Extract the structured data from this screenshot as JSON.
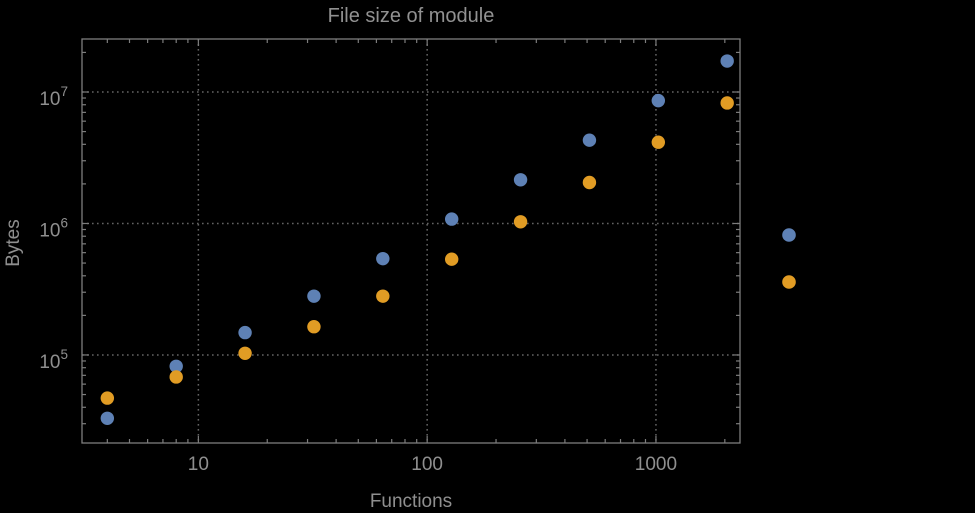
{
  "chart_data": {
    "type": "scatter",
    "title": "File size of module",
    "xlabel": "Functions",
    "ylabel": "Bytes",
    "x_scale": "log",
    "y_scale": "log",
    "x_range": [
      3.1,
      2330
    ],
    "y_range": [
      21400,
      25300000
    ],
    "grid": "dotted at major ticks",
    "legend_position": "right-outside, vertically centered, labels not visible",
    "x_major_ticks": [
      {
        "value": 10,
        "label": "10"
      },
      {
        "value": 100,
        "label": "100"
      },
      {
        "value": 1000,
        "label": "1000"
      }
    ],
    "y_major_ticks": [
      {
        "value": 100000,
        "base": "10",
        "exponent": "5"
      },
      {
        "value": 1000000,
        "base": "10",
        "exponent": "6"
      },
      {
        "value": 10000000,
        "base": "10",
        "exponent": "7"
      }
    ],
    "x_minor_ticks": [
      4,
      5,
      6,
      7,
      8,
      9,
      20,
      30,
      40,
      50,
      60,
      70,
      80,
      90,
      200,
      300,
      400,
      500,
      600,
      700,
      800,
      900,
      2000
    ],
    "y_minor_ticks": [
      30000,
      40000,
      50000,
      60000,
      70000,
      80000,
      90000,
      200000,
      300000,
      400000,
      500000,
      600000,
      700000,
      800000,
      900000,
      2000000,
      3000000,
      4000000,
      5000000,
      6000000,
      7000000,
      8000000,
      9000000,
      20000000
    ],
    "series": [
      {
        "name": "series-1",
        "color": "#5e81b5",
        "x": [
          4,
          8,
          16,
          32,
          64,
          128,
          256,
          512,
          1024,
          2048
        ],
        "y": [
          33000,
          82000,
          148000,
          280000,
          540000,
          1080000,
          2150000,
          4300000,
          8600000,
          17200000
        ]
      },
      {
        "name": "series-2",
        "color": "#e19c24",
        "x": [
          4,
          8,
          16,
          32,
          64,
          128,
          256,
          512,
          1024,
          2048
        ],
        "y": [
          47000,
          68000,
          103000,
          164000,
          280000,
          535000,
          1030000,
          2050000,
          4150000,
          8250000
        ]
      }
    ],
    "legend_markers": [
      {
        "color": "#5e81b5",
        "label": ""
      },
      {
        "color": "#e19c24",
        "label": ""
      }
    ]
  },
  "colors": {
    "background": "#000000",
    "frame": "#7d7d7d",
    "grid": "#646464",
    "text": "#8f8f8f",
    "series1": "#5e81b5",
    "series2": "#e19c24"
  }
}
